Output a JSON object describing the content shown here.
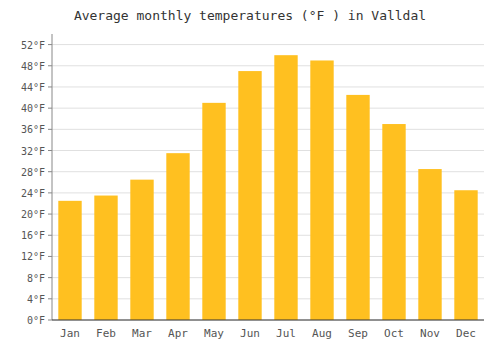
{
  "chart_data": {
    "type": "bar",
    "title": "Average monthly temperatures (°F ) in Valldal",
    "categories": [
      "Jan",
      "Feb",
      "Mar",
      "Apr",
      "May",
      "Jun",
      "Jul",
      "Aug",
      "Sep",
      "Oct",
      "Nov",
      "Dec"
    ],
    "values": [
      22.5,
      23.5,
      26.5,
      31.5,
      41.0,
      47.0,
      50.0,
      49.0,
      42.5,
      37.0,
      28.5,
      24.5
    ],
    "color": "#FFC020",
    "ylim": [
      0,
      54
    ],
    "yticks": [
      {
        "value": 0,
        "label": "0°F"
      },
      {
        "value": 4,
        "label": "4°F"
      },
      {
        "value": 8,
        "label": "8°F"
      },
      {
        "value": 12,
        "label": "12°F"
      },
      {
        "value": 16,
        "label": "16°F"
      },
      {
        "value": 20,
        "label": "20°F"
      },
      {
        "value": 24,
        "label": "24°F"
      },
      {
        "value": 28,
        "label": "28°F"
      },
      {
        "value": 32,
        "label": "32°F"
      },
      {
        "value": 36,
        "label": "36°F"
      },
      {
        "value": 40,
        "label": "40°F"
      },
      {
        "value": 44,
        "label": "44°F"
      },
      {
        "value": 48,
        "label": "48°F"
      },
      {
        "value": 52,
        "label": "52°F"
      }
    ],
    "grid": true
  }
}
